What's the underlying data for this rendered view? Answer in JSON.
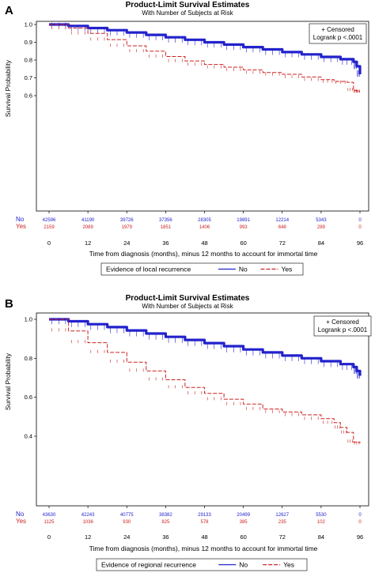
{
  "chart_data": [
    {
      "panel": "A",
      "type": "line",
      "title": "Product-Limit Survival Estimates",
      "subtitle": "With Number of Subjects at Risk",
      "xlabel": "Time from diagnosis (months), minus 12 months to account for immortal time",
      "ylabel": "Survival Probability",
      "xlim": [
        0,
        96
      ],
      "ylim": [
        0.6,
        1.0
      ],
      "xticks": [
        0,
        12,
        24,
        36,
        48,
        60,
        72,
        84,
        96
      ],
      "yticks": [
        0.6,
        0.7,
        0.8,
        0.9,
        1.0
      ],
      "ytick_labels": [
        "0.6",
        "0.7",
        "0.8",
        "0.9",
        "1.0"
      ],
      "inset": [
        "+ Censored",
        "Logrank p <.0001"
      ],
      "legend_title": "Evidence of local recurrence",
      "series": [
        {
          "name": "No",
          "color": "#2222cc",
          "style": "solid",
          "x": [
            0,
            6,
            12,
            18,
            24,
            30,
            36,
            42,
            48,
            54,
            60,
            66,
            72,
            78,
            84,
            90,
            94,
            95,
            96
          ],
          "y": [
            1.0,
            0.992,
            0.98,
            0.968,
            0.955,
            0.942,
            0.928,
            0.914,
            0.9,
            0.887,
            0.873,
            0.86,
            0.845,
            0.832,
            0.818,
            0.805,
            0.79,
            0.765,
            0.72
          ]
        },
        {
          "name": "Yes",
          "color": "#cc2222",
          "style": "dashed",
          "x": [
            0,
            6,
            12,
            18,
            24,
            30,
            36,
            42,
            48,
            54,
            60,
            66,
            72,
            78,
            84,
            88,
            92,
            94,
            95,
            96
          ],
          "y": [
            1.0,
            0.98,
            0.95,
            0.915,
            0.88,
            0.85,
            0.82,
            0.795,
            0.775,
            0.76,
            0.745,
            0.73,
            0.72,
            0.705,
            0.69,
            0.68,
            0.675,
            0.63,
            0.625,
            0.625
          ]
        }
      ],
      "at_risk": {
        "No": [
          "42596",
          "41190",
          "39726",
          "37356",
          "28305",
          "19891",
          "12214",
          "5343",
          "0"
        ],
        "Yes": [
          "2159",
          "2089",
          "1979",
          "1851",
          "1406",
          "993",
          "648",
          "289",
          "0"
        ]
      }
    },
    {
      "panel": "B",
      "type": "line",
      "title": "Product-Limit Survival Estimates",
      "subtitle": "With Number of Subjects at Risk",
      "xlabel": "Time from diagnosis (months), minus 12 months to account for immortal time",
      "ylabel": "Survival Probability",
      "xlim": [
        0,
        96
      ],
      "ylim": [
        0.34,
        1.0
      ],
      "xticks": [
        0,
        12,
        24,
        36,
        48,
        60,
        72,
        84,
        96
      ],
      "yticks": [
        0.4,
        0.6,
        0.8,
        1.0
      ],
      "ytick_labels": [
        "0.4",
        "0.6",
        "0.8",
        "1.0"
      ],
      "inset": [
        "+ Censored",
        "Logrank p <.0001"
      ],
      "legend_title": "Evidence of regional recurrence",
      "series": [
        {
          "name": "No",
          "color": "#2222cc",
          "style": "solid",
          "x": [
            0,
            6,
            12,
            18,
            24,
            30,
            36,
            42,
            48,
            54,
            60,
            66,
            72,
            78,
            84,
            90,
            94,
            95,
            96
          ],
          "y": [
            1.0,
            0.99,
            0.975,
            0.96,
            0.943,
            0.927,
            0.91,
            0.894,
            0.878,
            0.862,
            0.845,
            0.83,
            0.814,
            0.8,
            0.785,
            0.77,
            0.755,
            0.735,
            0.71
          ]
        },
        {
          "name": "Yes",
          "color": "#cc2222",
          "style": "dashed",
          "x": [
            0,
            6,
            12,
            18,
            24,
            30,
            36,
            42,
            48,
            54,
            60,
            66,
            72,
            78,
            84,
            88,
            90,
            92,
            94,
            96
          ],
          "y": [
            1.0,
            0.94,
            0.88,
            0.83,
            0.78,
            0.735,
            0.69,
            0.65,
            0.62,
            0.59,
            0.565,
            0.54,
            0.525,
            0.51,
            0.49,
            0.47,
            0.445,
            0.42,
            0.37,
            0.365
          ]
        }
      ],
      "at_risk": {
        "No": [
          "43630",
          "42243",
          "40775",
          "38382",
          "29133",
          "20499",
          "12627",
          "5530",
          "0"
        ],
        "Yes": [
          "1125",
          "1036",
          "930",
          "825",
          "578",
          "385",
          "235",
          "102",
          "0"
        ]
      }
    }
  ]
}
